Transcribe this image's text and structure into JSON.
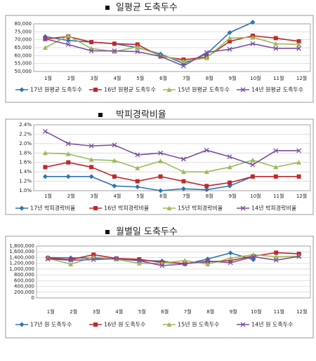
{
  "chart_data": [
    {
      "type": "line",
      "title": "일평균 도축두수",
      "categories": [
        "1월",
        "2월",
        "3월",
        "4월",
        "5월",
        "6월",
        "7월",
        "8월",
        "9월",
        "10월",
        "11월",
        "12월"
      ],
      "ylim": [
        50000,
        80000
      ],
      "yticks": [
        {
          "value": 50000,
          "label": "50,000"
        },
        {
          "value": 55000,
          "label": "55,000"
        },
        {
          "value": 60000,
          "label": "60,000"
        },
        {
          "value": 65000,
          "label": "65,000"
        },
        {
          "value": 70000,
          "label": "70,000"
        },
        {
          "value": 75000,
          "label": "75,000"
        },
        {
          "value": 80000,
          "label": "80,000"
        }
      ],
      "grid": true,
      "legend": "bottom",
      "series": [
        {
          "name": "17년 원평균 도축두수",
          "color": "#2e75b6",
          "marker": "diamond",
          "values": [
            72000,
            69500,
            68500,
            67500,
            65000,
            61000,
            55000,
            61000,
            74500,
            81000,
            null,
            null
          ]
        },
        {
          "name": "16년 원평균 도축두수",
          "color": "#c0282d",
          "marker": "square",
          "values": [
            70500,
            72000,
            68500,
            67500,
            67000,
            59500,
            57500,
            59000,
            69000,
            72500,
            71000,
            69000
          ]
        },
        {
          "name": "15년 원평균 도축두수",
          "color": "#9bbb59",
          "marker": "triangle",
          "values": [
            65000,
            72500,
            64500,
            62500,
            65500,
            60000,
            56500,
            58500,
            71000,
            71500,
            67500,
            67000
          ]
        },
        {
          "name": "14년 원평균 도축두수",
          "color": "#7b4fa0",
          "marker": "x",
          "values": [
            70500,
            67000,
            63000,
            63000,
            62500,
            59500,
            53500,
            62000,
            64000,
            67500,
            64500,
            64500
          ]
        }
      ]
    },
    {
      "type": "line",
      "title": "박피경락비율",
      "categories": [
        "1월",
        "2월",
        "3월",
        "4월",
        "5월",
        "6월",
        "7월",
        "8월",
        "9월",
        "10월",
        "11월",
        "12월"
      ],
      "ylim": [
        1.0,
        2.4
      ],
      "yticks": [
        {
          "value": 1.0,
          "label": "1.0%"
        },
        {
          "value": 1.2,
          "label": "1.2%"
        },
        {
          "value": 1.4,
          "label": "1.4%"
        },
        {
          "value": 1.6,
          "label": "1.6%"
        },
        {
          "value": 1.8,
          "label": "1.8%"
        },
        {
          "value": 2.0,
          "label": "2.0%"
        },
        {
          "value": 2.2,
          "label": "2.2%"
        },
        {
          "value": 2.4,
          "label": "2.4%"
        }
      ],
      "grid": true,
      "legend": "bottom",
      "series": [
        {
          "name": "17년 박피경락비율",
          "color": "#2e75b6",
          "marker": "diamond",
          "values": [
            1.3,
            1.3,
            1.3,
            1.1,
            1.08,
            1.0,
            1.04,
            1.02,
            1.1,
            1.3,
            null,
            null
          ]
        },
        {
          "name": "16년 박피경락비율",
          "color": "#c0282d",
          "marker": "square",
          "values": [
            1.5,
            1.6,
            1.5,
            1.3,
            1.2,
            1.3,
            1.2,
            1.1,
            1.17,
            1.3,
            1.3,
            1.3
          ]
        },
        {
          "name": "15년 박피경락비율",
          "color": "#9bbb59",
          "marker": "triangle",
          "values": [
            1.8,
            1.78,
            1.66,
            1.64,
            1.48,
            1.63,
            1.4,
            1.4,
            1.5,
            1.65,
            1.5,
            1.6
          ]
        },
        {
          "name": "14년 박피경락비율",
          "color": "#7b4fa0",
          "marker": "x",
          "values": [
            2.26,
            2.0,
            1.95,
            1.97,
            1.76,
            1.8,
            1.67,
            1.86,
            1.72,
            1.55,
            1.85,
            1.85
          ]
        }
      ]
    },
    {
      "type": "line",
      "title": "월별일 도축두수",
      "categories": [
        "1월",
        "2월",
        "3월",
        "4월",
        "5월",
        "6월",
        "7월",
        "8월",
        "9월",
        "10월",
        "11월",
        "12월"
      ],
      "ylim": [
        0,
        1800000
      ],
      "yticks": [
        0,
        {
          "value": 200000,
          "label": "200,000"
        },
        {
          "value": 400000,
          "label": "400,000"
        },
        {
          "value": 600000,
          "label": "600,000"
        },
        {
          "value": 800000,
          "label": "800,000"
        },
        {
          "value": 1000000,
          "label": "1,000,000"
        },
        {
          "value": 1200000,
          "label": "1,200,000"
        },
        {
          "value": 1400000,
          "label": "1,400,000"
        },
        {
          "value": 1600000,
          "label": "1,600,000"
        },
        {
          "value": 1800000,
          "label": "1,800,000"
        }
      ],
      "grid": true,
      "legend": "bottom",
      "series": [
        {
          "name": "17년 원 도축두수",
          "color": "#2e75b6",
          "marker": "diamond",
          "values": [
            1400000,
            1390000,
            1380000,
            1350000,
            1300000,
            1280000,
            1170000,
            1350000,
            1560000,
            1330000,
            null,
            null
          ]
        },
        {
          "name": "16년 원 도축두수",
          "color": "#c0282d",
          "marker": "square",
          "values": [
            1380000,
            1330000,
            1500000,
            1370000,
            1340000,
            1230000,
            1200000,
            1250000,
            1300000,
            1450000,
            1570000,
            1530000
          ]
        },
        {
          "name": "15년 원 도축두수",
          "color": "#9bbb59",
          "marker": "triangle",
          "values": [
            1380000,
            1170000,
            1420000,
            1340000,
            1200000,
            1200000,
            1300000,
            1170000,
            1380000,
            1500000,
            1430000,
            1450000
          ]
        },
        {
          "name": "14년 원 도축두수",
          "color": "#7b4fa0",
          "marker": "x",
          "values": [
            1350000,
            1310000,
            1330000,
            1360000,
            1290000,
            1120000,
            1180000,
            1280000,
            1220000,
            1430000,
            1310000,
            1440000
          ]
        }
      ]
    }
  ]
}
